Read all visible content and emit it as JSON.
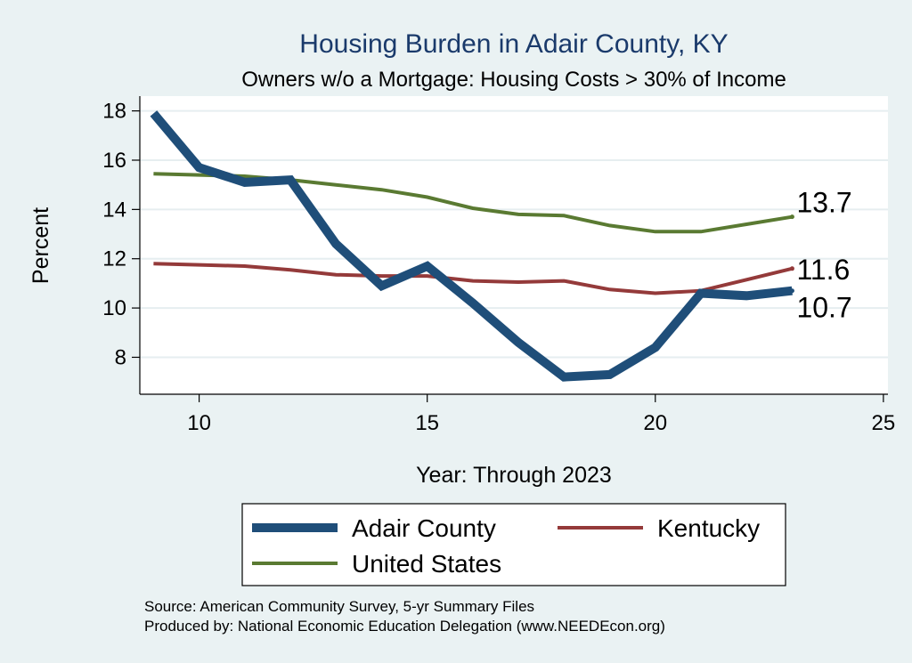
{
  "chart_data": {
    "type": "line",
    "title": "Housing Burden in Adair County, KY",
    "subtitle": "Owners w/o a Mortgage: Housing Costs > 30% of Income",
    "xlabel": "Year: Through 2023",
    "ylabel": "Percent",
    "xlim": [
      8.7,
      25.1
    ],
    "ylim": [
      6.5,
      18.6
    ],
    "xticks": [
      10,
      15,
      20,
      25
    ],
    "yticks": [
      8,
      10,
      12,
      14,
      16,
      18
    ],
    "grid": true,
    "x": [
      9,
      10,
      11,
      12,
      13,
      14,
      15,
      16,
      17,
      18,
      19,
      20,
      21,
      22,
      23
    ],
    "series": [
      {
        "name": "Adair County",
        "color": "#1f4e79",
        "values": [
          17.9,
          15.7,
          15.1,
          15.2,
          12.6,
          10.9,
          11.7,
          10.2,
          8.6,
          7.2,
          7.3,
          8.4,
          10.6,
          10.5,
          10.7
        ],
        "end_label": "10.7"
      },
      {
        "name": "Kentucky",
        "color": "#943a3a",
        "values": [
          11.8,
          11.75,
          11.7,
          11.55,
          11.35,
          11.3,
          11.3,
          11.1,
          11.05,
          11.1,
          10.75,
          10.6,
          10.7,
          11.15,
          11.6
        ],
        "end_label": "11.6"
      },
      {
        "name": "United States",
        "color": "#5a7a32",
        "values": [
          15.45,
          15.4,
          15.35,
          15.2,
          15.0,
          14.8,
          14.5,
          14.05,
          13.8,
          13.75,
          13.35,
          13.1,
          13.1,
          13.4,
          13.7
        ],
        "end_label": "13.7"
      }
    ],
    "legend": {
      "position": "bottom",
      "entries": [
        "Adair County",
        "Kentucky",
        "United States"
      ]
    },
    "source_lines": [
      "Source: American Community Survey, 5-yr Summary Files",
      "Produced by: National Economic Education Delegation (www.NEEDEcon.org)"
    ]
  }
}
